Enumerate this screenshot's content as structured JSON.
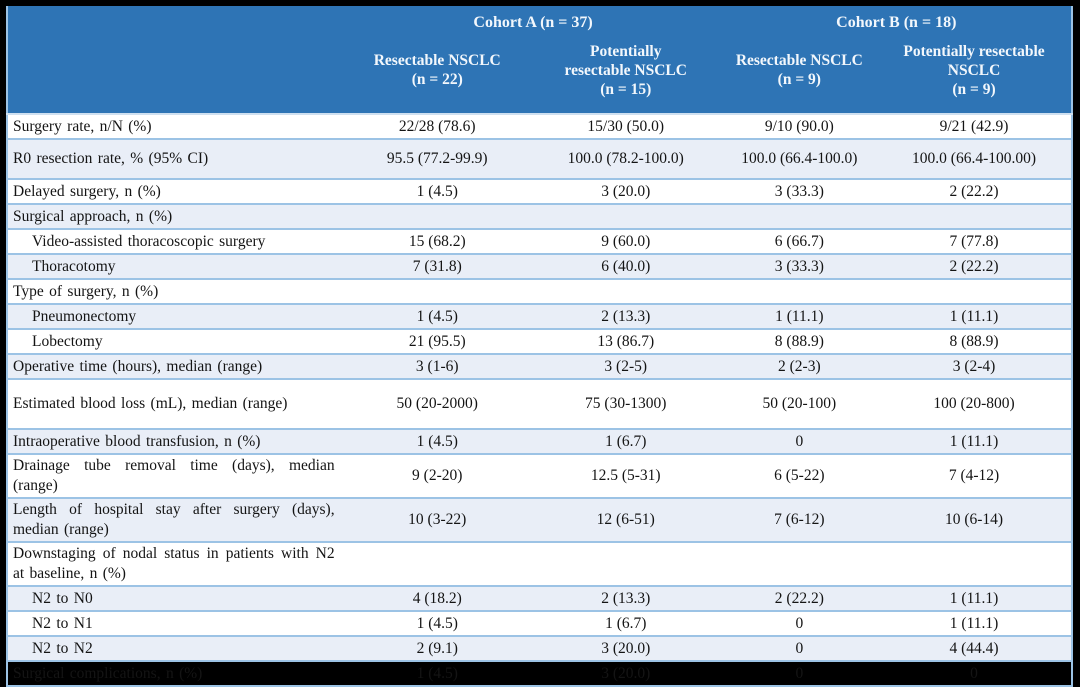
{
  "table": {
    "header": {
      "cohort_a": "Cohort A (n = 37)",
      "cohort_b": "Cohort B (n = 18)",
      "columns": [
        {
          "lines": [
            "Resectable NSCLC",
            "(n = 22)"
          ]
        },
        {
          "lines": [
            "Potentially",
            "resectable NSCLC",
            "(n = 15)"
          ]
        },
        {
          "lines": [
            "Resectable NSCLC",
            "(n = 9)"
          ]
        },
        {
          "lines": [
            "Potentially resectable",
            "NSCLC",
            "(n = 9)"
          ]
        }
      ]
    },
    "rows": [
      {
        "label": "Surgery rate, n/N (%)",
        "indent": false,
        "values": [
          "22/28 (78.6)",
          "15/30 (50.0)",
          "9/10 (90.0)",
          "9/21 (42.9)"
        ]
      },
      {
        "label": "R0 resection rate, % (95% CI)",
        "indent": false,
        "values": [
          "95.5 (77.2-99.9)",
          "100.0 (78.2-100.0)",
          "100.0 (66.4-100.0)",
          "100.0 (66.4-100.00)"
        ]
      },
      {
        "label": "Delayed surgery, n (%)",
        "indent": false,
        "values": [
          "1 (4.5)",
          "3 (20.0)",
          "3 (33.3)",
          "2 (22.2)"
        ]
      },
      {
        "label": "Surgical approach, n (%)",
        "indent": false,
        "values": [
          "",
          "",
          "",
          ""
        ]
      },
      {
        "label": "Video-assisted thoracoscopic surgery",
        "indent": true,
        "values": [
          "15 (68.2)",
          "9 (60.0)",
          "6 (66.7)",
          "7 (77.8)"
        ]
      },
      {
        "label": "Thoracotomy",
        "indent": true,
        "values": [
          "7 (31.8)",
          "6 (40.0)",
          "3 (33.3)",
          "2 (22.2)"
        ]
      },
      {
        "label": "Type of surgery, n (%)",
        "indent": false,
        "values": [
          "",
          "",
          "",
          ""
        ]
      },
      {
        "label": "Pneumonectomy",
        "indent": true,
        "values": [
          "1 (4.5)",
          "2 (13.3)",
          "1 (11.1)",
          "1 (11.1)"
        ]
      },
      {
        "label": "Lobectomy",
        "indent": true,
        "values": [
          "21 (95.5)",
          "13 (86.7)",
          "8 (88.9)",
          "8 (88.9)"
        ]
      },
      {
        "label": "Operative time (hours), median (range)",
        "indent": false,
        "values": [
          "3 (1-6)",
          "3 (2-5)",
          "2 (2-3)",
          "3 (2-4)"
        ]
      },
      {
        "label": "Estimated blood loss (mL), median (range)",
        "indent": false,
        "values": [
          "50 (20-2000)",
          "75 (30-1300)",
          "50 (20-100)",
          "100 (20-800)"
        ]
      },
      {
        "label": "Intraoperative blood transfusion, n (%)",
        "indent": false,
        "values": [
          "1 (4.5)",
          "1 (6.7)",
          "0",
          "1 (11.1)"
        ]
      },
      {
        "label": "Drainage tube removal time (days), median (range)",
        "indent": false,
        "values": [
          "9 (2-20)",
          "12.5 (5-31)",
          "6 (5-22)",
          "7 (4-12)"
        ]
      },
      {
        "label": "Length of hospital stay after surgery (days), median (range)",
        "indent": false,
        "values": [
          "10 (3-22)",
          "12 (6-51)",
          "7 (6-12)",
          "10 (6-14)"
        ]
      },
      {
        "label": "Downstaging of nodal status in patients with N2 at baseline, n (%)",
        "indent": false,
        "values": [
          "",
          "",
          "",
          ""
        ]
      },
      {
        "label": "N2 to N0",
        "indent": true,
        "values": [
          "4 (18.2)",
          "2 (13.3)",
          "2 (22.2)",
          "1 (11.1)"
        ]
      },
      {
        "label": "N2 to N1",
        "indent": true,
        "values": [
          "1 (4.5)",
          "1 (6.7)",
          "0",
          "1 (11.1)"
        ]
      },
      {
        "label": "N2 to N2",
        "indent": true,
        "values": [
          "2 (9.1)",
          "3 (20.0)",
          "0",
          "4 (44.4)"
        ]
      },
      {
        "label": "Surgical complications, n (%)",
        "indent": false,
        "values": [
          "1 (4.5)",
          "3 (20.0)",
          "0",
          "0"
        ]
      }
    ],
    "colors": {
      "header_bg": "#2E74B5",
      "band": "#E9EEF7",
      "grid": "#9CC3E5",
      "frame": "#000000",
      "header_text": "#F2F7FC"
    }
  }
}
